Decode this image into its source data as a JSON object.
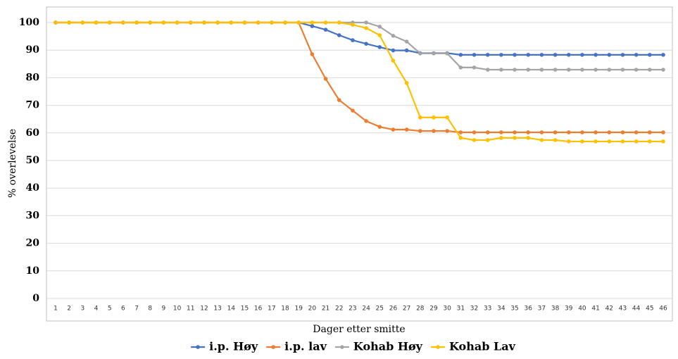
{
  "chart_data": {
    "type": "line",
    "categories": [
      "1",
      "2",
      "3",
      "4",
      "5",
      "6",
      "7",
      "8",
      "9",
      "10",
      "11",
      "12",
      "13",
      "14",
      "15",
      "16",
      "17",
      "18",
      "19",
      "20",
      "21",
      "22",
      "23",
      "24",
      "25",
      "26",
      "27",
      "28",
      "29",
      "30",
      "31",
      "32",
      "33",
      "34",
      "35",
      "36",
      "37",
      "38",
      "39",
      "40",
      "41",
      "42",
      "43",
      "44",
      "45",
      "46"
    ],
    "y_label": "% overlevelse",
    "x_label": "Dager etter smitte",
    "ylim": [
      0,
      100
    ],
    "yticks": [
      0,
      10,
      20,
      30,
      40,
      50,
      60,
      70,
      80,
      90,
      100
    ],
    "grid": true,
    "legend": "bottom",
    "series": [
      {
        "name": "i.p. Høy",
        "color": "#4472c4",
        "values": [
          100,
          100,
          100,
          100,
          100,
          100,
          100,
          100,
          100,
          100,
          100,
          100,
          100,
          100,
          100,
          100,
          100,
          100,
          100,
          98.7,
          97.4,
          95.4,
          93.6,
          92.3,
          91.1,
          89.9,
          89.9,
          88.9,
          88.9,
          88.9,
          88.3,
          88.3,
          88.3,
          88.3,
          88.3,
          88.3,
          88.3,
          88.3,
          88.3,
          88.3,
          88.3,
          88.3,
          88.3,
          88.3,
          88.3,
          88.3
        ]
      },
      {
        "name": "i.p. lav",
        "color": "#ed7d31",
        "values": [
          100,
          100,
          100,
          100,
          100,
          100,
          100,
          100,
          100,
          100,
          100,
          100,
          100,
          100,
          100,
          100,
          100,
          100,
          100,
          88.5,
          79.6,
          71.9,
          68.1,
          64.3,
          62.2,
          61.2,
          61.2,
          60.7,
          60.7,
          60.7,
          60.2,
          60.2,
          60.2,
          60.2,
          60.2,
          60.2,
          60.2,
          60.2,
          60.2,
          60.2,
          60.2,
          60.2,
          60.2,
          60.2,
          60.2,
          60.2
        ]
      },
      {
        "name": "Kohab Høy",
        "color": "#a5a5a5",
        "values": [
          100,
          100,
          100,
          100,
          100,
          100,
          100,
          100,
          100,
          100,
          100,
          100,
          100,
          100,
          100,
          100,
          100,
          100,
          100,
          100,
          100,
          100,
          100,
          100,
          98.5,
          95.2,
          93.1,
          88.8,
          88.8,
          88.8,
          83.7,
          83.7,
          82.9,
          82.9,
          82.9,
          82.9,
          82.9,
          82.9,
          82.9,
          82.9,
          82.9,
          82.9,
          82.9,
          82.9,
          82.9,
          82.9
        ]
      },
      {
        "name": "Kohab Lav",
        "color": "#ffc000",
        "values": [
          100,
          100,
          100,
          100,
          100,
          100,
          100,
          100,
          100,
          100,
          100,
          100,
          100,
          100,
          100,
          100,
          100,
          100,
          100,
          100,
          100,
          100,
          99.2,
          98,
          95.4,
          86.2,
          78.1,
          65.6,
          65.6,
          65.6,
          58.2,
          57.4,
          57.4,
          58.2,
          58.2,
          58.2,
          57.4,
          57.4,
          56.9,
          56.9,
          56.9,
          56.9,
          56.9,
          56.9,
          56.9,
          56.9
        ]
      }
    ]
  }
}
